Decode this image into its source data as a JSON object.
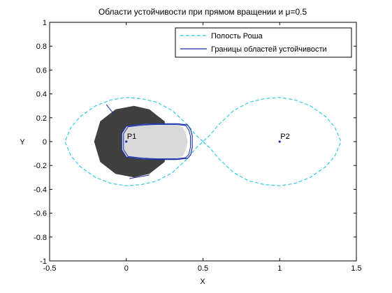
{
  "chart_data": {
    "type": "line",
    "title": "Области   устойчивости при прямом вращении и μ=0.5",
    "xlabel": "X",
    "ylabel": "Y",
    "xlim": [
      -0.5,
      1.5
    ],
    "ylim": [
      -1,
      1
    ],
    "xticks": [
      "-0.5",
      "0",
      "0.5",
      "1",
      "1.5"
    ],
    "yticks": [
      "-1",
      "-0.8",
      "-0.6",
      "-0.4",
      "-0.2",
      "0",
      "0.2",
      "0.4",
      "0.6",
      "0.8",
      "1"
    ],
    "xtick_values": [
      -0.5,
      0,
      0.5,
      1,
      1.5
    ],
    "ytick_values": [
      -1,
      -0.8,
      -0.6,
      -0.4,
      -0.2,
      0,
      0.2,
      0.4,
      0.6,
      0.8,
      1
    ],
    "grid": false,
    "legend_position": "top-right",
    "colors": {
      "roche": "#33CCE0",
      "boundary": "#1A2FA8",
      "dark_region": "#404040",
      "light_region": "#D9D9D9",
      "point": "#1A2FA8"
    },
    "series": [
      {
        "name": "Полость Роша",
        "style": "dashed",
        "x": [
          0.5,
          0.45,
          0.4,
          0.3,
          0.2,
          0.1,
          0.0,
          -0.1,
          -0.2,
          -0.3,
          -0.36,
          -0.4,
          -0.36,
          -0.3,
          -0.2,
          -0.1,
          0.0,
          0.1,
          0.2,
          0.3,
          0.4,
          0.45,
          0.5,
          0.55,
          0.6,
          0.7,
          0.8,
          0.9,
          1.0,
          1.1,
          1.2,
          1.3,
          1.36,
          1.4,
          1.36,
          1.3,
          1.2,
          1.1,
          1.0,
          0.9,
          0.8,
          0.7,
          0.6,
          0.55,
          0.5
        ],
        "y": [
          0.0,
          0.06,
          0.14,
          0.26,
          0.33,
          0.36,
          0.37,
          0.35,
          0.3,
          0.21,
          0.12,
          0.0,
          -0.12,
          -0.21,
          -0.3,
          -0.35,
          -0.37,
          -0.36,
          -0.33,
          -0.26,
          -0.14,
          -0.06,
          0.0,
          0.06,
          0.14,
          0.26,
          0.33,
          0.36,
          0.37,
          0.35,
          0.3,
          0.21,
          0.12,
          0.0,
          -0.12,
          -0.21,
          -0.3,
          -0.35,
          -0.37,
          -0.36,
          -0.33,
          -0.26,
          -0.14,
          -0.06,
          0.0
        ]
      },
      {
        "name": "Границы областей устойчивости",
        "style": "solid",
        "x": [
          0.0,
          0.1,
          0.2,
          0.33,
          0.4,
          0.42,
          0.43,
          0.43,
          0.42,
          0.4,
          0.33,
          0.2,
          0.1,
          0.0,
          -0.03,
          -0.03,
          0.0
        ],
        "y": [
          0.13,
          0.145,
          0.15,
          0.15,
          0.14,
          0.1,
          0.05,
          -0.05,
          -0.11,
          -0.14,
          -0.15,
          -0.15,
          -0.145,
          -0.13,
          -0.07,
          0.07,
          0.13
        ]
      }
    ],
    "regions": [
      {
        "fill": "dark",
        "x": [
          0.15,
          0.05,
          -0.07,
          -0.17,
          -0.21,
          -0.17,
          -0.07,
          0.05,
          0.15,
          0.25,
          0.27,
          0.25,
          0.15
        ],
        "y": [
          0.27,
          0.3,
          0.27,
          0.17,
          0.0,
          -0.17,
          -0.27,
          -0.3,
          -0.27,
          -0.17,
          0.0,
          0.17,
          0.27
        ]
      },
      {
        "fill": "light",
        "x": [
          0.0,
          0.12,
          0.24,
          0.32,
          0.37,
          0.39,
          0.4,
          0.39,
          0.37,
          0.32,
          0.24,
          0.12,
          0.0,
          -0.03,
          -0.03,
          0.0
        ],
        "y": [
          0.13,
          0.15,
          0.15,
          0.14,
          0.12,
          0.06,
          0.0,
          -0.06,
          -0.12,
          -0.14,
          -0.15,
          -0.15,
          -0.13,
          -0.07,
          0.07,
          0.13
        ]
      }
    ],
    "tangent_lines": [
      {
        "x": [
          -0.08,
          -0.13
        ],
        "y": [
          0.23,
          0.31
        ]
      },
      {
        "x": [
          0.02,
          0.15
        ],
        "y": [
          -0.31,
          -0.28
        ]
      }
    ],
    "points": [
      {
        "label": "P1",
        "x": 0.0,
        "y": 0.0
      },
      {
        "label": "P2",
        "x": 1.0,
        "y": 0.0
      }
    ]
  }
}
